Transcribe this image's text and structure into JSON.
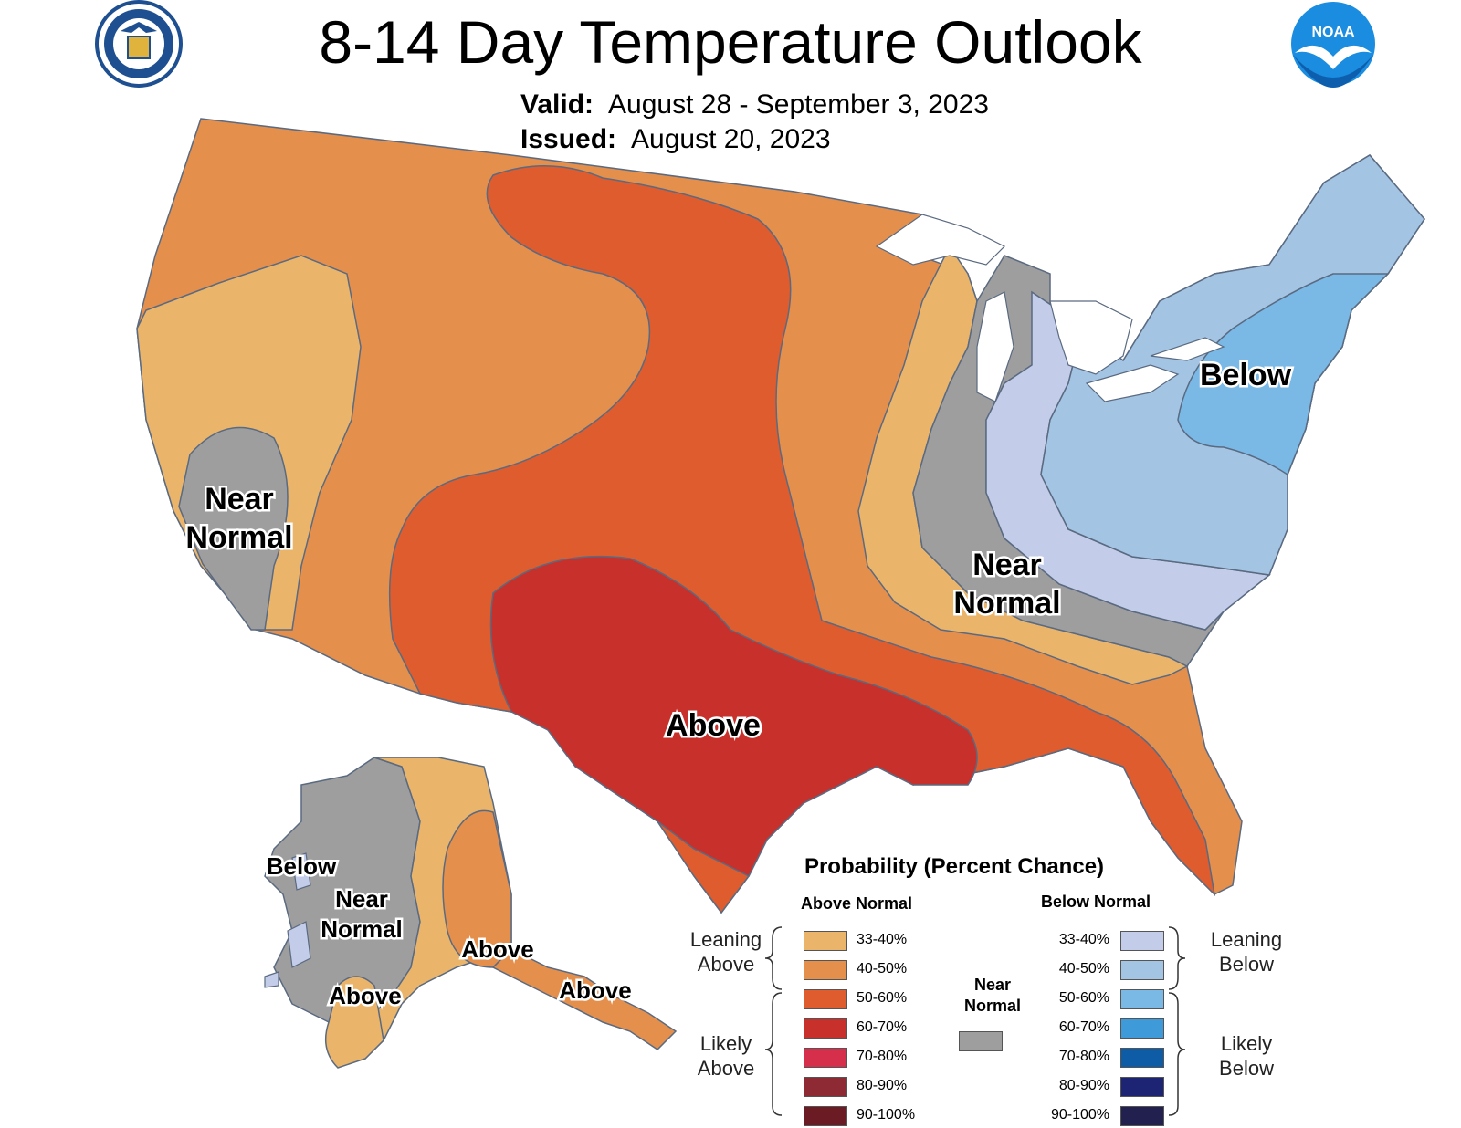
{
  "header": {
    "title": "8-14 Day Temperature Outlook",
    "valid_label": "Valid:",
    "valid_value": "August 28 - September 3, 2023",
    "issued_label": "Issued:",
    "issued_value": "August 20, 2023"
  },
  "logos": {
    "left": "department-of-commerce-seal",
    "right": "noaa-logo",
    "noaa_text": "NOAA"
  },
  "colors": {
    "above_33_40": "#eab56a",
    "above_40_50": "#e58f4d",
    "above_50_60": "#de5c2e",
    "above_60_70": "#c8302c",
    "above_70_80": "#d62f4c",
    "above_80_90": "#8e2a33",
    "above_90_100": "#6b1b23",
    "near_normal": "#9e9e9e",
    "below_33_40": "#c3cdea",
    "below_40_50": "#a4c4e4",
    "below_50_60": "#7ab8e6",
    "below_60_70": "#3f9ad9",
    "below_70_80": "#0e5ca6",
    "below_80_90": "#1c2473",
    "below_90_100": "#22204f",
    "boundary": "#5a6a80"
  },
  "map_labels": {
    "conus_west_near_normal_1": "Near",
    "conus_west_near_normal_2": "Normal",
    "conus_east_near_normal_1": "Near",
    "conus_east_near_normal_2": "Normal",
    "conus_below": "Below",
    "conus_above": "Above",
    "ak_below": "Below",
    "ak_near_normal_1": "Near",
    "ak_near_normal_2": "Normal",
    "ak_above_sw": "Above",
    "ak_above_south": "Above",
    "ak_above_se": "Above"
  },
  "legend": {
    "title": "Probability (Percent Chance)",
    "above_header": "Above Normal",
    "below_header": "Below Normal",
    "leaning_above_1": "Leaning",
    "leaning_above_2": "Above",
    "likely_above_1": "Likely",
    "likely_above_2": "Above",
    "leaning_below_1": "Leaning",
    "leaning_below_2": "Below",
    "likely_below_1": "Likely",
    "likely_below_2": "Below",
    "near_normal_1": "Near",
    "near_normal_2": "Normal",
    "above_rows": [
      "33-40%",
      "40-50%",
      "50-60%",
      "60-70%",
      "70-80%",
      "80-90%",
      "90-100%"
    ],
    "below_rows": [
      "33-40%",
      "40-50%",
      "50-60%",
      "60-70%",
      "70-80%",
      "80-90%",
      "90-100%"
    ]
  }
}
